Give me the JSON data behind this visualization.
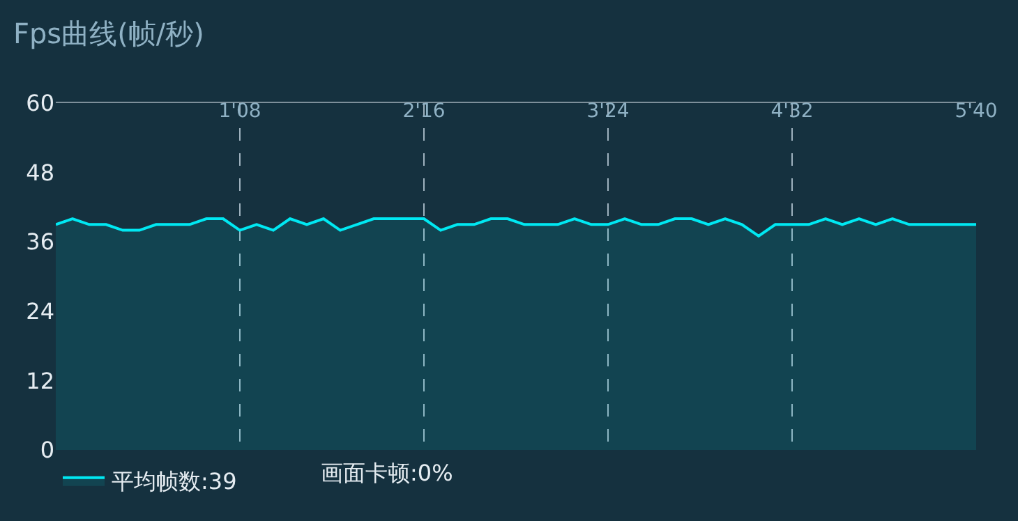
{
  "chart_data": {
    "type": "area",
    "title": "Fps曲线(帧/秒)",
    "categories": [
      null,
      null,
      null,
      null,
      null,
      null,
      null,
      null,
      null,
      null,
      null,
      "1'08",
      null,
      null,
      null,
      null,
      null,
      null,
      null,
      null,
      null,
      null,
      "2'16",
      null,
      null,
      null,
      null,
      null,
      null,
      null,
      null,
      null,
      null,
      "3'24",
      null,
      null,
      null,
      null,
      null,
      null,
      null,
      null,
      null,
      null,
      "4'32",
      null,
      null,
      null,
      null,
      null,
      null,
      null,
      null,
      null,
      null,
      "5'40"
    ],
    "series": [
      {
        "name": "平均帧数:39",
        "color": "#00e8f2",
        "values": [
          39,
          40,
          39,
          39,
          38,
          38,
          39,
          39,
          39,
          40,
          40,
          38,
          39,
          38,
          40,
          39,
          40,
          38,
          39,
          40,
          40,
          40,
          40,
          38,
          39,
          39,
          40,
          40,
          39,
          39,
          39,
          40,
          39,
          39,
          40,
          39,
          39,
          40,
          40,
          39,
          40,
          39,
          37,
          39,
          39,
          39,
          40,
          39,
          40,
          39,
          40,
          39,
          39,
          39,
          39,
          39
        ]
      }
    ],
    "ylim": [
      0,
      60
    ],
    "yticks": [
      0,
      12,
      24,
      36,
      48,
      60
    ],
    "grid": "x",
    "legend": "bottom left",
    "marker": "none",
    "line_style": "solid",
    "annotations": [
      "画面卡顿:0%"
    ]
  }
}
